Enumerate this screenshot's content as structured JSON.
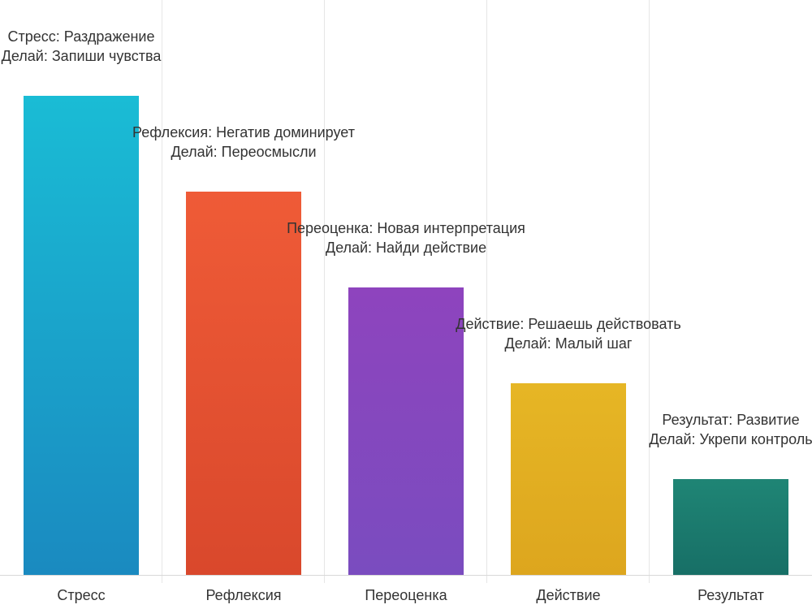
{
  "chart_data": {
    "type": "bar",
    "title": "",
    "xlabel": "",
    "ylabel": "",
    "ylim": [
      0,
      5.4
    ],
    "grid": "vertical",
    "legend": "none",
    "categories": [
      "Стресс",
      "Рефлексия",
      "Переоценка",
      "Действие",
      "Результат"
    ],
    "values": [
      5,
      4,
      3,
      2,
      1
    ],
    "annotations": [
      {
        "line1": "Стресс: Раздражение",
        "line2": "Делай: Запиши чувства"
      },
      {
        "line1": "Рефлексия: Негатив доминирует",
        "line2": "Делай: Переосмысли"
      },
      {
        "line1": "Переоценка: Новая интерпретация",
        "line2": "Делай: Найди действие"
      },
      {
        "line1": "Действие: Решаешь действовать",
        "line2": "Делай: Малый шаг"
      },
      {
        "line1": "Результат: Развитие",
        "line2": "Делай: Укрепи контроль"
      }
    ],
    "colors": [
      {
        "top": "#1ABCD5",
        "bottom": "#1A8AC0"
      },
      {
        "top": "#EF5B37",
        "bottom": "#D9482C"
      },
      {
        "top": "#8E44BE",
        "bottom": "#7A4CBF"
      },
      {
        "top": "#E6B625",
        "bottom": "#DDA61E"
      },
      {
        "top": "#1F8575",
        "bottom": "#176F66"
      }
    ]
  }
}
